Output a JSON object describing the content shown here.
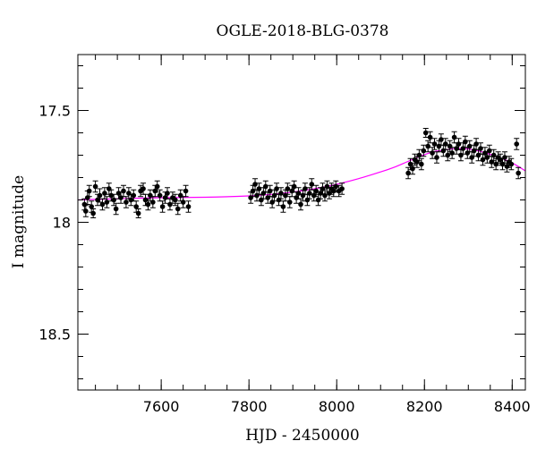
{
  "chart_data": {
    "type": "scatter",
    "title": "OGLE-2018-BLG-0378",
    "xlabel": "HJD - 2450000",
    "ylabel": "I magnitude",
    "xlim": [
      7410,
      8430
    ],
    "ylim": [
      18.75,
      17.25
    ],
    "y_inverted": true,
    "grid": false,
    "legend": "none",
    "x_major_ticks": [
      7600,
      7800,
      8000,
      8200,
      8400
    ],
    "x_minor_step": 50,
    "y_major_ticks": [
      17.5,
      18,
      18.5
    ],
    "y_tick_labels": [
      "17.5",
      "18",
      "18.5"
    ],
    "y_minor_step": 0.1,
    "colors": {
      "data": "#000000",
      "model": "#ff00ff",
      "frame": "#000000"
    },
    "series": [
      {
        "kind": "points_with_errorbars",
        "points": [
          [
            7425,
            17.92,
            0.025
          ],
          [
            7428,
            17.95,
            0.025
          ],
          [
            7432,
            17.89,
            0.03
          ],
          [
            7436,
            17.86,
            0.025
          ],
          [
            7441,
            17.93,
            0.025
          ],
          [
            7445,
            17.96,
            0.02
          ],
          [
            7450,
            17.84,
            0.025
          ],
          [
            7455,
            17.9,
            0.025
          ],
          [
            7460,
            17.88,
            0.03
          ],
          [
            7466,
            17.92,
            0.025
          ],
          [
            7471,
            17.87,
            0.025
          ],
          [
            7476,
            17.91,
            0.025
          ],
          [
            7481,
            17.85,
            0.025
          ],
          [
            7486,
            17.88,
            0.025
          ],
          [
            7492,
            17.9,
            0.025
          ],
          [
            7497,
            17.94,
            0.025
          ],
          [
            7503,
            17.87,
            0.025
          ],
          [
            7508,
            17.89,
            0.025
          ],
          [
            7514,
            17.86,
            0.025
          ],
          [
            7520,
            17.91,
            0.025
          ],
          [
            7526,
            17.87,
            0.025
          ],
          [
            7531,
            17.9,
            0.025
          ],
          [
            7537,
            17.88,
            0.025
          ],
          [
            7543,
            17.93,
            0.025
          ],
          [
            7548,
            17.96,
            0.02
          ],
          [
            7553,
            17.86,
            0.025
          ],
          [
            7559,
            17.85,
            0.025
          ],
          [
            7564,
            17.9,
            0.025
          ],
          [
            7570,
            17.92,
            0.025
          ],
          [
            7575,
            17.88,
            0.025
          ],
          [
            7581,
            17.91,
            0.025
          ],
          [
            7586,
            17.86,
            0.025
          ],
          [
            7591,
            17.84,
            0.025
          ],
          [
            7597,
            17.88,
            0.025
          ],
          [
            7603,
            17.93,
            0.025
          ],
          [
            7609,
            17.89,
            0.025
          ],
          [
            7614,
            17.87,
            0.025
          ],
          [
            7620,
            17.92,
            0.025
          ],
          [
            7626,
            17.89,
            0.025
          ],
          [
            7632,
            17.9,
            0.025
          ],
          [
            7638,
            17.94,
            0.025
          ],
          [
            7644,
            17.88,
            0.025
          ],
          [
            7650,
            17.91,
            0.025
          ],
          [
            7656,
            17.86,
            0.025
          ],
          [
            7662,
            17.93,
            0.025
          ],
          [
            7804,
            17.89,
            0.025
          ],
          [
            7809,
            17.86,
            0.025
          ],
          [
            7814,
            17.83,
            0.025
          ],
          [
            7818,
            17.88,
            0.025
          ],
          [
            7823,
            17.85,
            0.025
          ],
          [
            7828,
            17.9,
            0.025
          ],
          [
            7833,
            17.87,
            0.025
          ],
          [
            7838,
            17.84,
            0.025
          ],
          [
            7843,
            17.89,
            0.025
          ],
          [
            7848,
            17.86,
            0.025
          ],
          [
            7853,
            17.91,
            0.025
          ],
          [
            7858,
            17.88,
            0.025
          ],
          [
            7863,
            17.85,
            0.025
          ],
          [
            7868,
            17.9,
            0.025
          ],
          [
            7873,
            17.87,
            0.025
          ],
          [
            7878,
            17.93,
            0.025
          ],
          [
            7883,
            17.88,
            0.025
          ],
          [
            7888,
            17.85,
            0.025
          ],
          [
            7893,
            17.91,
            0.025
          ],
          [
            7898,
            17.86,
            0.025
          ],
          [
            7903,
            17.84,
            0.025
          ],
          [
            7908,
            17.89,
            0.025
          ],
          [
            7913,
            17.87,
            0.025
          ],
          [
            7918,
            17.92,
            0.025
          ],
          [
            7923,
            17.88,
            0.025
          ],
          [
            7928,
            17.85,
            0.025
          ],
          [
            7933,
            17.9,
            0.025
          ],
          [
            7938,
            17.87,
            0.025
          ],
          [
            7943,
            17.83,
            0.025
          ],
          [
            7948,
            17.88,
            0.025
          ],
          [
            7953,
            17.86,
            0.025
          ],
          [
            7958,
            17.9,
            0.025
          ],
          [
            7963,
            17.87,
            0.025
          ],
          [
            7968,
            17.85,
            0.025
          ],
          [
            7973,
            17.88,
            0.025
          ],
          [
            7978,
            17.84,
            0.025
          ],
          [
            7983,
            17.87,
            0.025
          ],
          [
            7988,
            17.85,
            0.025
          ],
          [
            7993,
            17.86,
            0.025
          ],
          [
            7998,
            17.84,
            0.025
          ],
          [
            8005,
            17.86,
            0.025
          ],
          [
            8012,
            17.85,
            0.025
          ],
          [
            8163,
            17.78,
            0.025
          ],
          [
            8168,
            17.74,
            0.025
          ],
          [
            8173,
            17.76,
            0.025
          ],
          [
            8178,
            17.72,
            0.025
          ],
          [
            8183,
            17.73,
            0.025
          ],
          [
            8188,
            17.7,
            0.025
          ],
          [
            8193,
            17.74,
            0.025
          ],
          [
            8198,
            17.68,
            0.025
          ],
          [
            8203,
            17.6,
            0.02
          ],
          [
            8208,
            17.66,
            0.025
          ],
          [
            8213,
            17.62,
            0.025
          ],
          [
            8218,
            17.69,
            0.025
          ],
          [
            8223,
            17.65,
            0.025
          ],
          [
            8228,
            17.71,
            0.025
          ],
          [
            8233,
            17.66,
            0.025
          ],
          [
            8238,
            17.63,
            0.025
          ],
          [
            8243,
            17.68,
            0.025
          ],
          [
            8248,
            17.65,
            0.025
          ],
          [
            8253,
            17.7,
            0.025
          ],
          [
            8258,
            17.66,
            0.025
          ],
          [
            8263,
            17.69,
            0.025
          ],
          [
            8268,
            17.62,
            0.025
          ],
          [
            8273,
            17.67,
            0.025
          ],
          [
            8278,
            17.65,
            0.025
          ],
          [
            8283,
            17.7,
            0.025
          ],
          [
            8288,
            17.67,
            0.025
          ],
          [
            8293,
            17.64,
            0.025
          ],
          [
            8298,
            17.69,
            0.025
          ],
          [
            8303,
            17.66,
            0.025
          ],
          [
            8308,
            17.71,
            0.025
          ],
          [
            8313,
            17.68,
            0.025
          ],
          [
            8318,
            17.65,
            0.025
          ],
          [
            8323,
            17.7,
            0.025
          ],
          [
            8328,
            17.67,
            0.025
          ],
          [
            8333,
            17.72,
            0.025
          ],
          [
            8338,
            17.69,
            0.025
          ],
          [
            8343,
            17.71,
            0.025
          ],
          [
            8348,
            17.68,
            0.025
          ],
          [
            8353,
            17.73,
            0.025
          ],
          [
            8358,
            17.7,
            0.025
          ],
          [
            8363,
            17.74,
            0.025
          ],
          [
            8368,
            17.71,
            0.025
          ],
          [
            8373,
            17.72,
            0.025
          ],
          [
            8378,
            17.74,
            0.025
          ],
          [
            8383,
            17.71,
            0.025
          ],
          [
            8388,
            17.75,
            0.025
          ],
          [
            8393,
            17.73,
            0.025
          ],
          [
            8398,
            17.74,
            0.025
          ],
          [
            8410,
            17.65,
            0.025
          ],
          [
            8414,
            17.78,
            0.025
          ]
        ]
      },
      {
        "kind": "model_curve",
        "x": [
          7410,
          7500,
          7600,
          7700,
          7800,
          7850,
          7900,
          7950,
          8000,
          8050,
          8100,
          8130,
          8160,
          8190,
          8220,
          8250,
          8280,
          8310,
          8340,
          8370,
          8400,
          8430
        ],
        "y": [
          17.9,
          17.895,
          17.89,
          17.888,
          17.882,
          17.875,
          17.865,
          17.85,
          17.83,
          17.805,
          17.775,
          17.755,
          17.73,
          17.705,
          17.685,
          17.675,
          17.67,
          17.675,
          17.69,
          17.71,
          17.735,
          17.77
        ]
      }
    ]
  }
}
